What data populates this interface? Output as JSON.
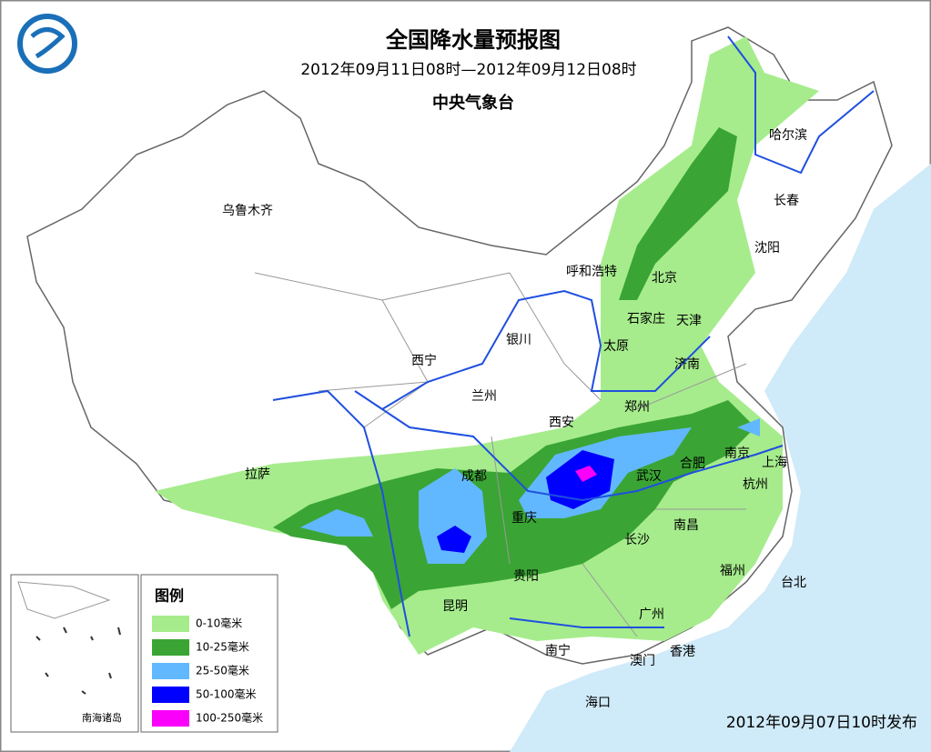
{
  "header": {
    "title": "全国降水量预报图",
    "subtitle": "2012年09月11日08时—2012年09月12日08时",
    "issuer": "中央气象台"
  },
  "cities": [
    "乌鲁木齐",
    "哈尔滨",
    "长春",
    "沈阳",
    "呼和浩特",
    "北京",
    "石家庄",
    "天津",
    "太原",
    "济南",
    "银川",
    "西宁",
    "兰州",
    "西安",
    "郑州",
    "南京",
    "合肥",
    "上海",
    "拉萨",
    "成都",
    "武汉",
    "杭州",
    "重庆",
    "南昌",
    "长沙",
    "福州",
    "贵阳",
    "台北",
    "昆明",
    "广州",
    "南宁",
    "香港",
    "澳门",
    "海口"
  ],
  "inset": {
    "label": "南海诸岛"
  },
  "legend": {
    "title": "图例",
    "items": [
      {
        "label": "0-10毫米",
        "color": "#a6ec8c"
      },
      {
        "label": "10-25毫米",
        "color": "#3aa534"
      },
      {
        "label": "25-50毫米",
        "color": "#62b8ff"
      },
      {
        "label": "50-100毫米",
        "color": "#0000fe"
      },
      {
        "label": "100-250毫米",
        "color": "#fa00fa"
      }
    ]
  },
  "footer": {
    "issued": "2012年09月07日10时发布"
  }
}
